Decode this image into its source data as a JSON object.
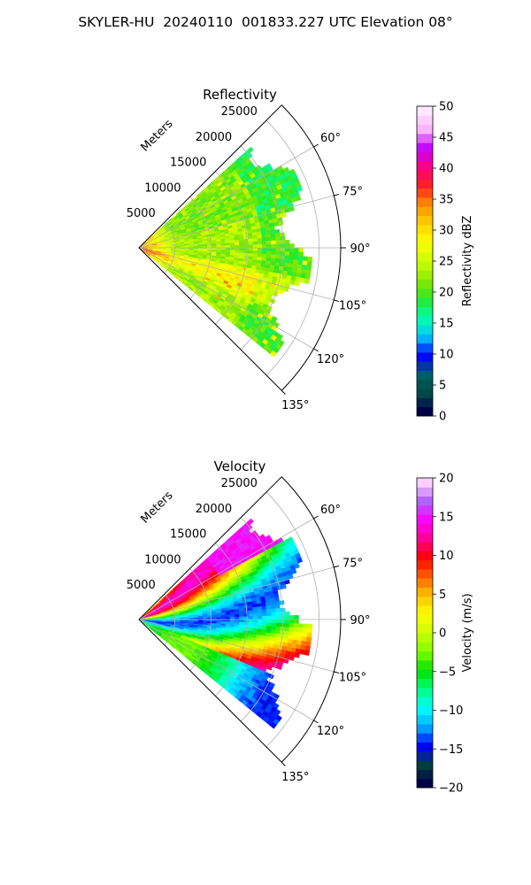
{
  "title": "SKYLER-HU  20240110  001833.227 UTC Elevation 08°",
  "chart_data": [
    {
      "type": "heatmap",
      "subtype": "polar-sector",
      "title": "Reflectivity",
      "radial_label": "Meters",
      "radial_ticks": [
        5000,
        10000,
        15000,
        20000,
        25000
      ],
      "radial_tick_labels": [
        "5000",
        "10000",
        "15000",
        "20000",
        "25000"
      ],
      "rlim": [
        0,
        28000
      ],
      "angular_range_deg": [
        45,
        135
      ],
      "angular_ticks": [
        60,
        75,
        90,
        105,
        120,
        135
      ],
      "angular_tick_labels": [
        "60°",
        "75°",
        "90°",
        "105°",
        "120°",
        "135°"
      ],
      "data_extent_deg": [
        48,
        129
      ],
      "colorbar": {
        "label": "Reflectivity dBZ",
        "range": [
          0,
          50
        ],
        "ticks": [
          0,
          5,
          10,
          15,
          20,
          25,
          30,
          35,
          40,
          45,
          50
        ],
        "tick_labels": [
          "0",
          "5",
          "10",
          "15",
          "20",
          "25",
          "30",
          "35",
          "40",
          "45",
          "50"
        ]
      },
      "grid": true
    },
    {
      "type": "heatmap",
      "subtype": "polar-sector",
      "title": "Velocity",
      "radial_label": "Meters",
      "radial_ticks": [
        5000,
        10000,
        15000,
        20000,
        25000
      ],
      "radial_tick_labels": [
        "5000",
        "10000",
        "15000",
        "20000",
        "25000"
      ],
      "rlim": [
        0,
        28000
      ],
      "angular_range_deg": [
        45,
        135
      ],
      "angular_ticks": [
        60,
        75,
        90,
        105,
        120,
        135
      ],
      "angular_tick_labels": [
        "60°",
        "75°",
        "90°",
        "105°",
        "120°",
        "135°"
      ],
      "data_extent_deg": [
        48,
        129
      ],
      "colorbar": {
        "label": "Velocity (m/s)",
        "range": [
          -20,
          20
        ],
        "ticks": [
          -20,
          -15,
          -10,
          -5,
          0,
          5,
          10,
          15,
          20
        ],
        "tick_labels": [
          "−20",
          "−15",
          "−10",
          "−5",
          "0",
          "5",
          "10",
          "15",
          "20"
        ]
      },
      "grid": true
    }
  ],
  "colormaps": {
    "reflectivity": [
      "#00004a",
      "#004a4a",
      "#006060",
      "#0000ff",
      "#00c8ff",
      "#00ffaa",
      "#28e828",
      "#8ee800",
      "#c8ff00",
      "#ffff00",
      "#ffd000",
      "#ff9000",
      "#ff2020",
      "#ff0080",
      "#c000ff",
      "#ffb0ff",
      "#ffe8ff"
    ],
    "velocity": [
      "#00004a",
      "#004040",
      "#0000ff",
      "#00aaff",
      "#00ffff",
      "#00ff80",
      "#00e000",
      "#80ff00",
      "#c8ff00",
      "#ffff00",
      "#ffc000",
      "#ff6000",
      "#ff0000",
      "#ff0090",
      "#ff00ff",
      "#b060ff",
      "#ffd0ff"
    ]
  }
}
